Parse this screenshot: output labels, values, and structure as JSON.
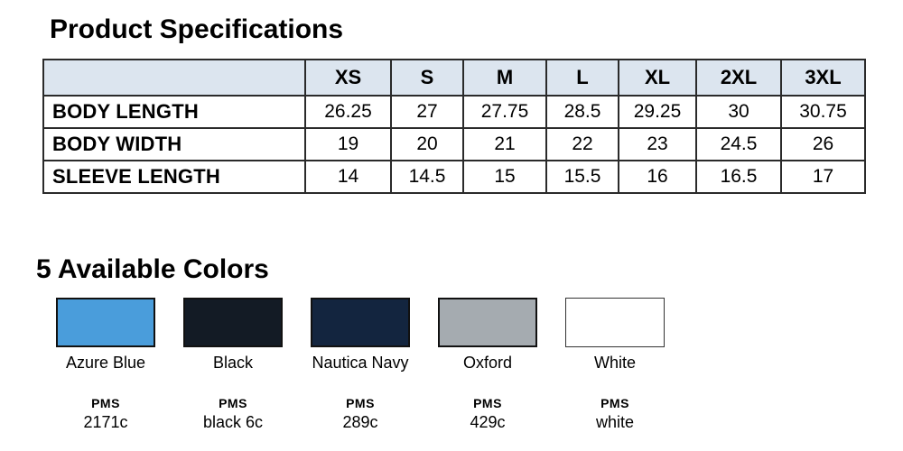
{
  "page": {
    "title": "Product Specifications"
  },
  "spec_table": {
    "columns": [
      "",
      "XS",
      "S",
      "M",
      "L",
      "XL",
      "2XL",
      "3XL"
    ],
    "rows": [
      {
        "label": "BODY LENGTH",
        "values": [
          "26.25",
          "27",
          "27.75",
          "28.5",
          "29.25",
          "30",
          "30.75"
        ]
      },
      {
        "label": "BODY WIDTH",
        "values": [
          "19",
          "20",
          "21",
          "22",
          "23",
          "24.5",
          "26"
        ]
      },
      {
        "label": "SLEEVE LENGTH",
        "values": [
          "14",
          "14.5",
          "15",
          "15.5",
          "16",
          "16.5",
          "17"
        ]
      }
    ],
    "header_bg": "#dce5ef",
    "border_color": "#2a2a2a"
  },
  "colors_section": {
    "title": "5 Available Colors",
    "items": [
      {
        "name": "Azure Blue",
        "hex": "#4a9ddb",
        "pms_label": "PMS",
        "pms_code": "2171c"
      },
      {
        "name": "Black",
        "hex": "#131b25",
        "pms_label": "PMS",
        "pms_code": "black 6c"
      },
      {
        "name": "Nautica Navy",
        "hex": "#13253f",
        "pms_label": "PMS",
        "pms_code": "289c"
      },
      {
        "name": "Oxford",
        "hex": "#a5abb0",
        "pms_label": "PMS",
        "pms_code": "429c"
      },
      {
        "name": "White",
        "hex": "#ffffff",
        "pms_label": "PMS",
        "pms_code": "white"
      }
    ]
  }
}
